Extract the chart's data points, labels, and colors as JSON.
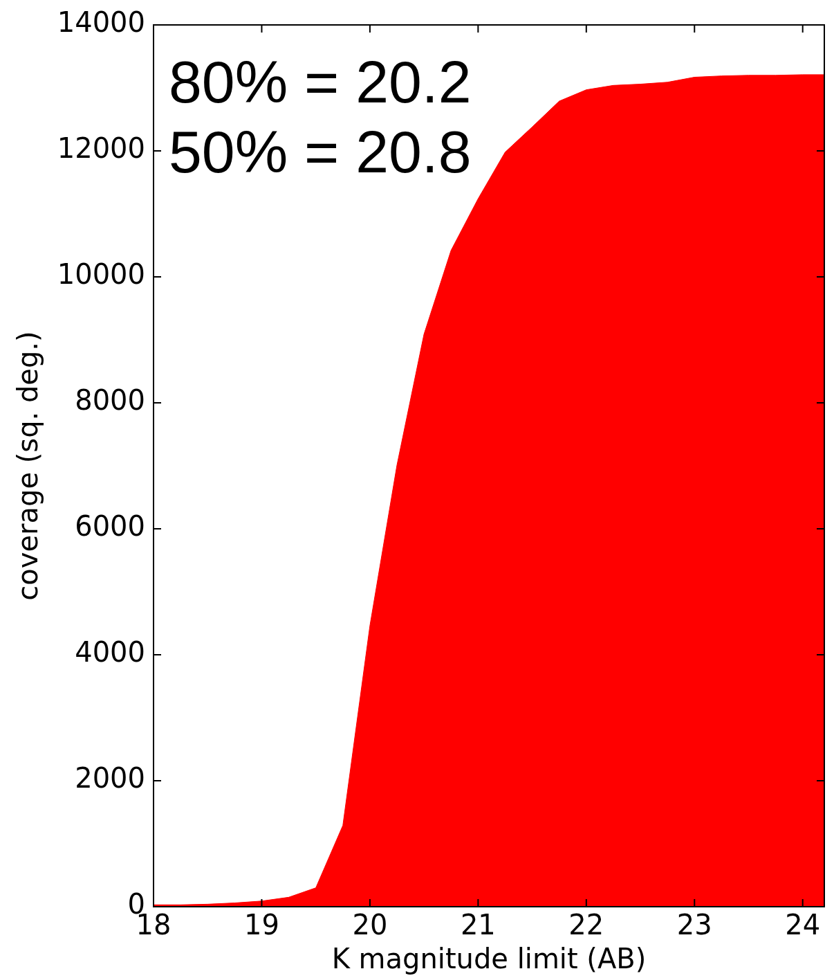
{
  "chart_data": {
    "type": "area",
    "xlabel": "K magnitude limit (AB)",
    "ylabel": "coverage (sq. deg.)",
    "annotations": [
      "80% = 20.2",
      "50% = 20.8"
    ],
    "x": [
      18,
      18.25,
      18.5,
      18.75,
      19,
      19.25,
      19.5,
      19.75,
      20,
      20.25,
      20.5,
      20.75,
      21,
      21.25,
      21.5,
      21.75,
      22,
      22.25,
      22.5,
      22.75,
      23,
      23.25,
      23.5,
      23.75,
      24,
      24.2
    ],
    "values": [
      30,
      30,
      40,
      60,
      90,
      150,
      300,
      1290,
      4460,
      7010,
      9090,
      10420,
      11240,
      11980,
      12380,
      12790,
      12970,
      13040,
      13060,
      13090,
      13170,
      13190,
      13200,
      13200,
      13210,
      13210
    ],
    "color": "#ff0000",
    "xlim": [
      18,
      24.2
    ],
    "xticks": [
      18,
      19,
      20,
      21,
      22,
      23,
      24
    ],
    "ylim": [
      0,
      14000
    ],
    "yticks": [
      0,
      2000,
      4000,
      6000,
      8000,
      10000,
      12000,
      14000
    ],
    "grid": false,
    "marker": "none"
  }
}
